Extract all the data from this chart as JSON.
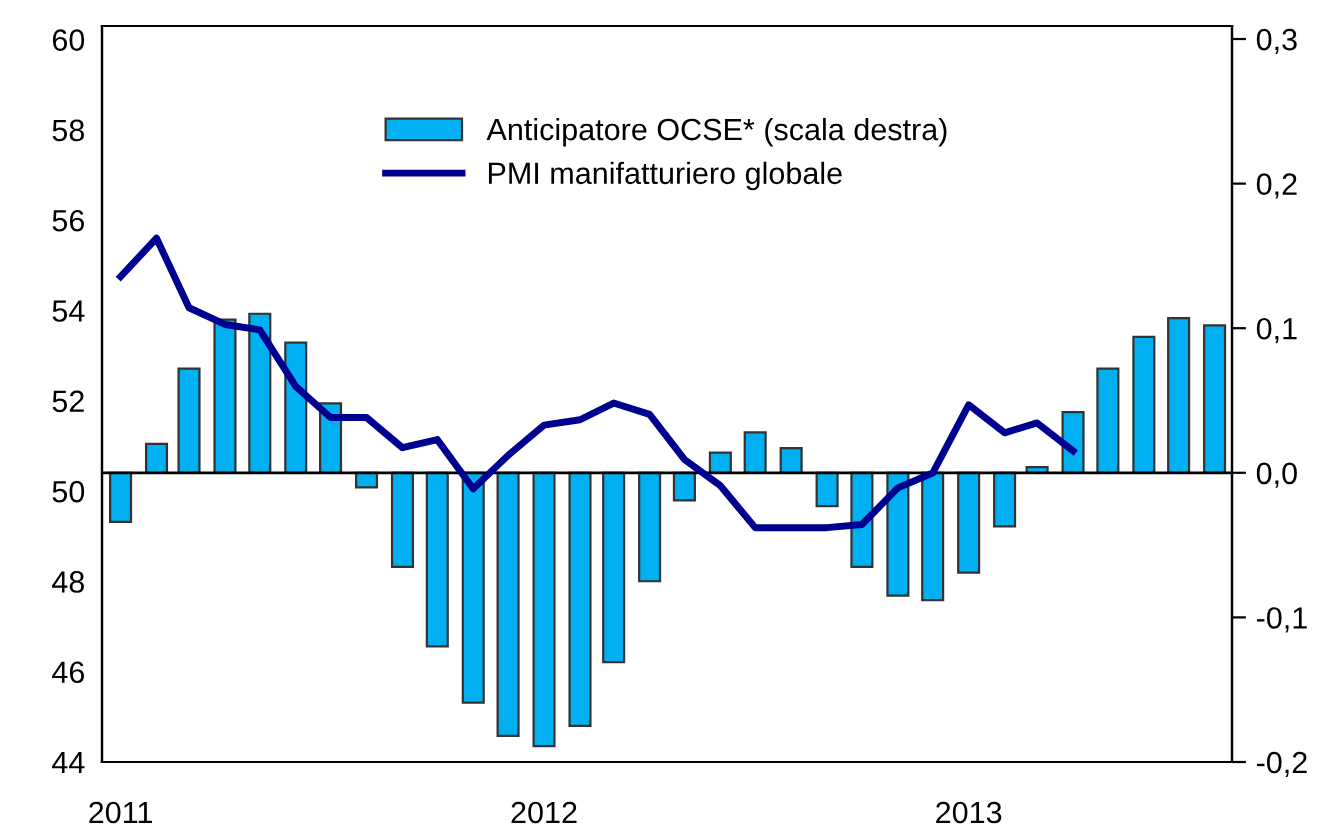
{
  "chart_data": {
    "type": "bar",
    "x": [
      "2011-01",
      "2011-02",
      "2011-03",
      "2011-04",
      "2011-05",
      "2011-06",
      "2011-07",
      "2011-08",
      "2011-09",
      "2011-10",
      "2011-11",
      "2011-12",
      "2012-01",
      "2012-02",
      "2012-03",
      "2012-04",
      "2012-05",
      "2012-06",
      "2012-07",
      "2012-08",
      "2012-09",
      "2012-10",
      "2012-11",
      "2012-12",
      "2013-01",
      "2013-02",
      "2013-03",
      "2013-04",
      "2013-05",
      "2013-06",
      "2013-07",
      "2013-08"
    ],
    "series": [
      {
        "name": "Anticipatore OCSE* (scala destra)",
        "axis": "y2",
        "color": "#00b0f0",
        "values": [
          -0.034,
          0.02,
          0.072,
          0.106,
          0.11,
          0.09,
          0.048,
          -0.01,
          -0.065,
          -0.12,
          -0.159,
          -0.182,
          -0.189,
          -0.175,
          -0.131,
          -0.075,
          -0.019,
          0.014,
          0.028,
          0.017,
          -0.023,
          -0.065,
          -0.085,
          -0.088,
          -0.069,
          -0.037,
          0.004,
          0.042,
          0.072,
          0.094,
          0.107,
          0.102
        ]
      },
      {
        "name": "PMI manifatturiero globale",
        "type": "line",
        "color": "#000090",
        "values": [
          54.75,
          55.6,
          54.06,
          53.69,
          53.57,
          52.32,
          51.63,
          51.63,
          50.96,
          51.14,
          50.05,
          50.79,
          51.46,
          51.58,
          51.95,
          51.7,
          50.7,
          50.12,
          49.19,
          49.19,
          49.19,
          49.26,
          50.07,
          50.4,
          51.91,
          51.29,
          51.51,
          50.89,
          null,
          null,
          null,
          null
        ]
      }
    ],
    "xlim": [
      "2010-12-16",
      "2013-08-16"
    ],
    "xticks": [
      {
        "value": "2011-01",
        "label": "2011"
      },
      {
        "value": "2012-01",
        "label": "2012"
      },
      {
        "value": "2013-01",
        "label": "2013"
      }
    ],
    "ylim": [
      44,
      60.3
    ],
    "yticks": [
      44,
      46,
      48,
      50,
      52,
      54,
      56,
      58,
      60
    ],
    "y2lim": [
      -0.2,
      0.309
    ],
    "y2ticks": [
      {
        "value": -0.2,
        "label": "-0,2"
      },
      {
        "value": -0.1,
        "label": "-0,1"
      },
      {
        "value": 0.0,
        "label": "0,0"
      },
      {
        "value": 0.1,
        "label": "0,1"
      },
      {
        "value": 0.2,
        "label": "0,2"
      },
      {
        "value": 0.3,
        "label": "0,3"
      }
    ],
    "ref_lines": [
      {
        "axis": "y2",
        "value": 0.0,
        "color": "#000000",
        "line_style": "solid"
      }
    ],
    "grid": false,
    "legend": "top"
  }
}
